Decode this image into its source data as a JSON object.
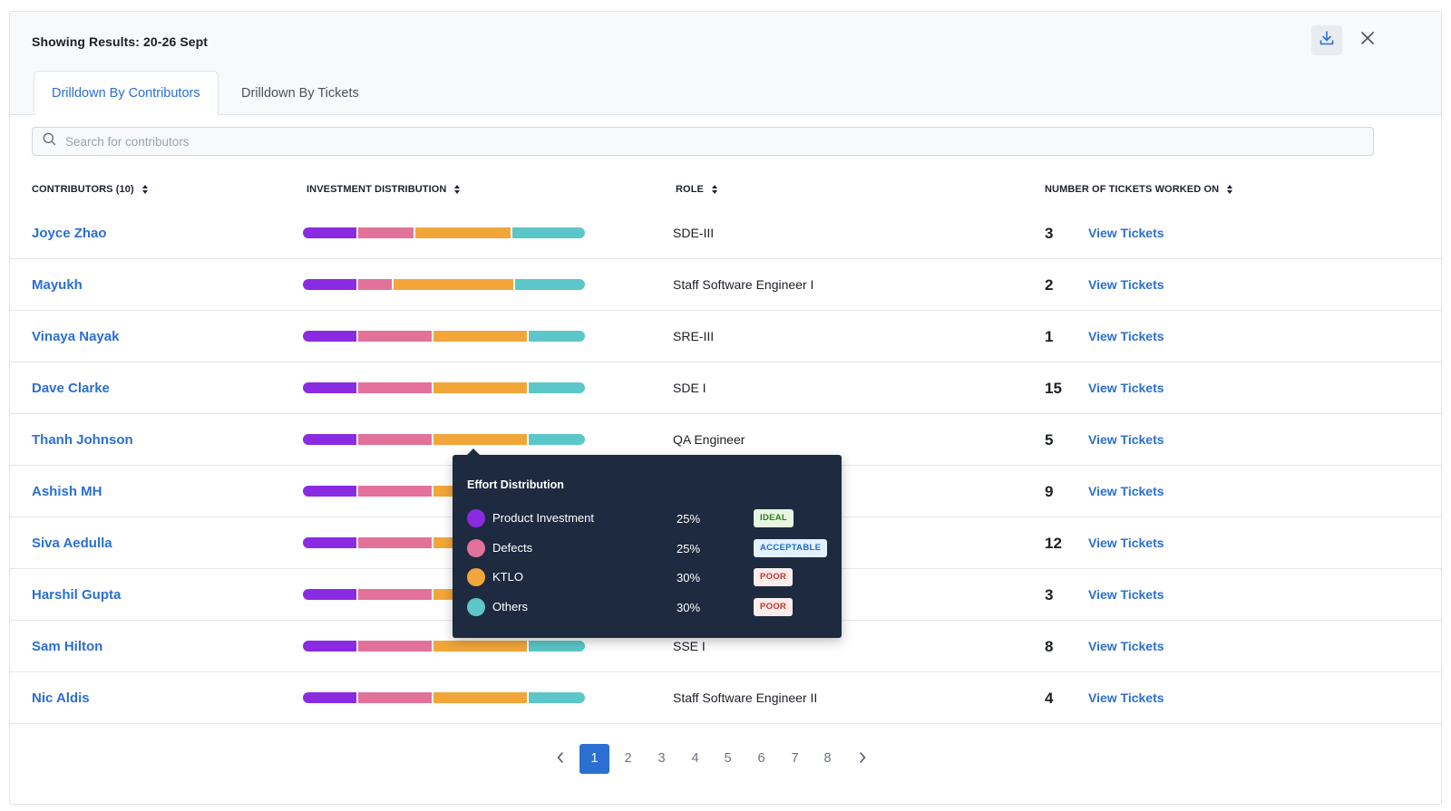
{
  "header": {
    "title": "Showing Results: 20-26 Sept",
    "download_icon": "download-icon",
    "close_icon": "close-icon"
  },
  "tabs": [
    {
      "label": "Drilldown By Contributors",
      "active": true
    },
    {
      "label": "Drilldown By Tickets",
      "active": false
    }
  ],
  "search": {
    "placeholder": "Search for contributors",
    "value": ""
  },
  "table": {
    "columns": {
      "contributors": "CONTRIBUTORS (10)",
      "investment": "INVESTMENT DISTRIBUTION",
      "role": "ROLE",
      "tickets": "NUMBER OF TICKETS WORKED ON"
    },
    "view_label": "View Tickets",
    "rows": [
      {
        "name": "Joyce Zhao",
        "role": "SDE-III",
        "tickets": "3",
        "view": "View Tickets",
        "dist": [
          19,
          20,
          34,
          26
        ]
      },
      {
        "name": "Mayukh",
        "role": "Staff Software Engineer I",
        "tickets": "2",
        "view": "View Tickets",
        "dist": [
          19,
          12,
          43,
          25
        ]
      },
      {
        "name": "Vinaya Nayak",
        "role": "SRE-III",
        "tickets": "1",
        "view": "View Tickets",
        "dist": [
          19,
          26,
          33,
          20
        ]
      },
      {
        "name": "Dave Clarke",
        "role": "SDE I",
        "tickets": "15",
        "view": "View Tickets",
        "dist": [
          19,
          26,
          33,
          20
        ]
      },
      {
        "name": "Thanh Johnson",
        "role": "QA Engineer",
        "tickets": "5",
        "view": "View Tickets",
        "dist": [
          19,
          26,
          33,
          20
        ]
      },
      {
        "name": "Ashish MH",
        "role": "",
        "tickets": "9",
        "view": "View Tickets",
        "dist": [
          19,
          26,
          33,
          20
        ]
      },
      {
        "name": "Siva Aedulla",
        "role": "",
        "tickets": "12",
        "view": "View Tickets",
        "dist": [
          19,
          26,
          33,
          20
        ]
      },
      {
        "name": "Harshil Gupta",
        "role": "",
        "tickets": "3",
        "view": "View Tickets",
        "dist": [
          19,
          26,
          33,
          20
        ]
      },
      {
        "name": "Sam Hilton",
        "role": "SSE I",
        "tickets": "8",
        "view": "View Tickets",
        "dist": [
          19,
          26,
          33,
          20
        ]
      },
      {
        "name": "Nic Aldis",
        "role": "Staff Software Engineer II",
        "tickets": "4",
        "view": "View Tickets",
        "dist": [
          19,
          26,
          33,
          20
        ]
      }
    ]
  },
  "categories": [
    {
      "name": "Product Investment",
      "color": "#8a2be2"
    },
    {
      "name": "Defects",
      "color": "#e2729a"
    },
    {
      "name": "KTLO",
      "color": "#f2a63a"
    },
    {
      "name": "Others",
      "color": "#5cc6c8"
    }
  ],
  "tooltip": {
    "title": "Effort Distribution",
    "items": [
      {
        "label": "Product Investment",
        "percent": "25%",
        "badge": "IDEAL",
        "color": "#8a2be2",
        "badge_bg": "#e6f6e1",
        "badge_fg": "#2f7d1f"
      },
      {
        "label": "Defects",
        "percent": "25%",
        "badge": "ACCEPTABLE",
        "color": "#e2729a",
        "badge_bg": "#e2f1fd",
        "badge_fg": "#1f6fc0"
      },
      {
        "label": "KTLO",
        "percent": "30%",
        "badge": "POOR",
        "color": "#f2a63a",
        "badge_bg": "#fdecec",
        "badge_fg": "#c0332b"
      },
      {
        "label": "Others",
        "percent": "30%",
        "badge": "POOR",
        "color": "#5cc6c8",
        "badge_bg": "#fdecec",
        "badge_fg": "#c0332b"
      }
    ]
  },
  "pagination": {
    "pages": [
      "1",
      "2",
      "3",
      "4",
      "5",
      "6",
      "7",
      "8"
    ],
    "current": "1",
    "prev_icon": "chevron-left-icon",
    "next_icon": "chevron-right-icon"
  }
}
